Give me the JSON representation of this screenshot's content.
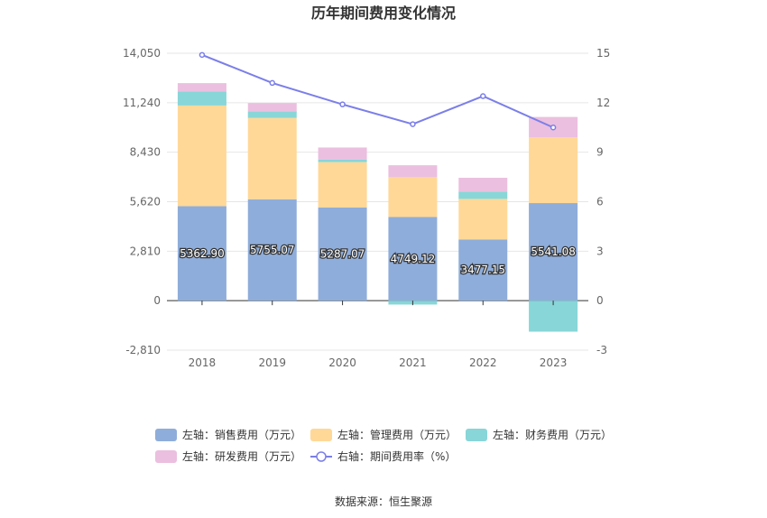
{
  "chart_data": {
    "type": "bar",
    "title": "历年期间费用变化情况",
    "categories": [
      "2018",
      "2019",
      "2020",
      "2021",
      "2022",
      "2023"
    ],
    "left_axis": {
      "ticks": [
        "14,050",
        "11,240",
        "8,430",
        "5,620",
        "2,810",
        "0",
        "-2,810"
      ],
      "ylim": [
        -2810,
        14050
      ]
    },
    "right_axis": {
      "ticks": [
        "15",
        "12",
        "9",
        "6",
        "3",
        "0",
        "-3"
      ],
      "ylim": [
        -3,
        15
      ]
    },
    "series": [
      {
        "name": "左轴：销售费用（万元）",
        "type": "bar",
        "color": "#8fadda",
        "values": [
          5362.9,
          5755.07,
          5287.07,
          4749.12,
          3477.15,
          5541.08
        ],
        "labels": [
          "5362.90",
          "5755.07",
          "5287.07",
          "4749.12",
          "3477.15",
          "5541.08"
        ]
      },
      {
        "name": "左轴：管理费用（万元）",
        "type": "bar",
        "color": "#ffd898",
        "values": [
          5720,
          4620,
          2580,
          2260,
          2300,
          3740
        ]
      },
      {
        "name": "左轴：财务费用（万元）",
        "type": "bar",
        "color": "#88d6d8",
        "values": [
          800,
          380,
          150,
          -220,
          420,
          -1760
        ]
      },
      {
        "name": "左轴：研发费用（万元）",
        "type": "bar",
        "color": "#ebbfdf",
        "values": [
          470,
          470,
          680,
          680,
          780,
          1150
        ]
      },
      {
        "name": "右轴：期间费用率（%）",
        "type": "line",
        "color": "#7b7fe8",
        "values": [
          14.9,
          13.2,
          11.9,
          10.7,
          12.4,
          10.5
        ]
      }
    ],
    "source": "数据来源：恒生聚源"
  }
}
